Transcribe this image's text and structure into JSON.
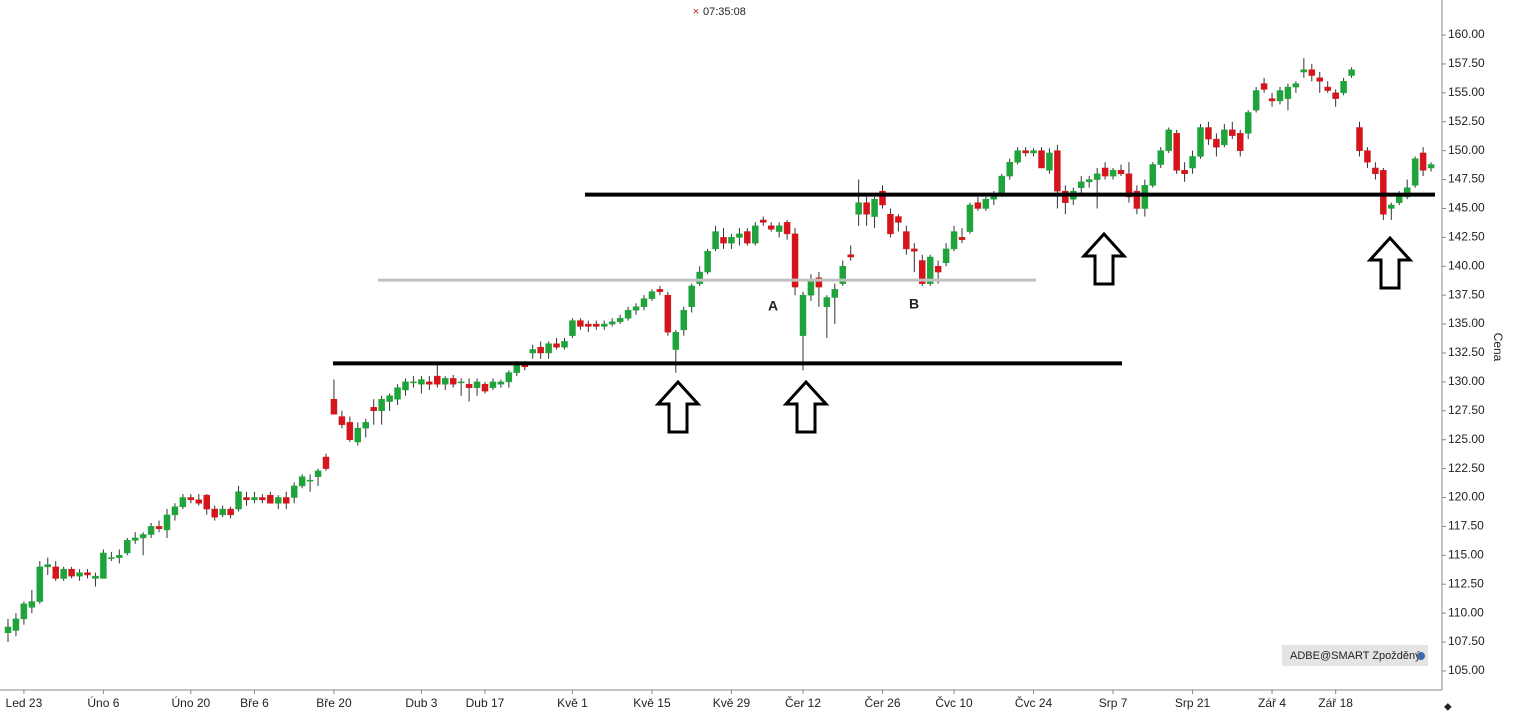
{
  "chart_data": {
    "type": "candlestick",
    "title": "07:35:08",
    "y_axis_label": "Cena",
    "badge": "ADBE@SMART Zpožděný",
    "annotations": [
      "A",
      "B"
    ],
    "up_color": "#1fa33b",
    "down_color": "#d4161c",
    "ylim": [
      103.35,
      163.03
    ],
    "yticks": [
      {
        "value": 105,
        "label": "105.00"
      },
      {
        "value": 107.5,
        "label": "107.50"
      },
      {
        "value": 110,
        "label": "110.00"
      },
      {
        "value": 112.5,
        "label": "112.50"
      },
      {
        "value": 115,
        "label": "115.00"
      },
      {
        "value": 117.5,
        "label": "117.50"
      },
      {
        "value": 120,
        "label": "120.00"
      },
      {
        "value": 122.5,
        "label": "122.50"
      },
      {
        "value": 125,
        "label": "125.00"
      },
      {
        "value": 127.5,
        "label": "127.50"
      },
      {
        "value": 130,
        "label": "130.00"
      },
      {
        "value": 132.5,
        "label": "132.50"
      },
      {
        "value": 135,
        "label": "135.00"
      },
      {
        "value": 137.5,
        "label": "137.50"
      },
      {
        "value": 140,
        "label": "140.00"
      },
      {
        "value": 142.5,
        "label": "142.50"
      },
      {
        "value": 145,
        "label": "145.00"
      },
      {
        "value": 147.5,
        "label": "147.50"
      },
      {
        "value": 150,
        "label": "150.00"
      },
      {
        "value": 152.5,
        "label": "152.50"
      },
      {
        "value": 155,
        "label": "155.00"
      },
      {
        "value": 157.5,
        "label": "157.50"
      },
      {
        "value": 160,
        "label": "160.00"
      }
    ],
    "levels": [
      {
        "value": 131.6,
        "color": "#000000"
      },
      {
        "value": 146.2,
        "color": "#000000"
      },
      {
        "value": 138.8,
        "color": "#c0c0c0"
      }
    ],
    "categories": [
      null,
      null,
      "Led 23",
      null,
      null,
      null,
      null,
      null,
      null,
      null,
      null,
      null,
      "Úno 6",
      null,
      null,
      null,
      null,
      null,
      null,
      null,
      null,
      null,
      null,
      "Úno 20",
      null,
      null,
      null,
      null,
      null,
      null,
      null,
      "Bře 6",
      null,
      null,
      null,
      null,
      null,
      null,
      null,
      null,
      null,
      "Bře 20",
      null,
      null,
      null,
      null,
      null,
      null,
      null,
      null,
      null,
      null,
      "Dub 3",
      null,
      null,
      null,
      null,
      null,
      null,
      null,
      "Dub 17",
      null,
      null,
      null,
      null,
      null,
      null,
      null,
      null,
      null,
      null,
      "Kvě 1",
      null,
      null,
      null,
      null,
      null,
      null,
      null,
      null,
      null,
      "Kvě 15",
      null,
      null,
      null,
      null,
      null,
      null,
      null,
      null,
      null,
      "Kvě 29",
      null,
      null,
      null,
      null,
      null,
      null,
      null,
      null,
      "Čer 12",
      null,
      null,
      null,
      null,
      null,
      null,
      null,
      null,
      null,
      "Čer 26",
      null,
      null,
      null,
      null,
      null,
      null,
      null,
      null,
      "Čvc 10",
      null,
      null,
      null,
      null,
      null,
      null,
      null,
      null,
      null,
      "Čvc 24",
      null,
      null,
      null,
      null,
      null,
      null,
      null,
      null,
      null,
      "Srp 7",
      null,
      null,
      null,
      null,
      null,
      null,
      null,
      null,
      null,
      "Srp 21",
      null,
      null,
      null,
      null,
      null,
      null,
      null,
      null,
      null,
      "Zář 4",
      null,
      null,
      null,
      null,
      null,
      null,
      null,
      "Zář 18",
      null,
      null,
      null,
      null,
      null,
      null,
      null,
      null,
      null,
      null,
      null,
      null
    ],
    "candles": [
      [
        108.3,
        109.5,
        107.5,
        108.8
      ],
      [
        108.5,
        110,
        108,
        109.5
      ],
      [
        109.5,
        111,
        109,
        110.8
      ],
      [
        110.5,
        112,
        110,
        111
      ],
      [
        111,
        114.5,
        110.8,
        114
      ],
      [
        114,
        114.8,
        113.3,
        114.2
      ],
      [
        114,
        114.5,
        112.8,
        113
      ],
      [
        113,
        114,
        112.8,
        113.8
      ],
      [
        113.8,
        114,
        113,
        113.2
      ],
      [
        113.2,
        113.8,
        112.8,
        113.5
      ],
      [
        113.5,
        113.8,
        113,
        113.3
      ],
      [
        113,
        113.5,
        112.3,
        113.2
      ],
      [
        113,
        115.5,
        113,
        115.2
      ],
      [
        114.8,
        115.3,
        114.5,
        114.8
      ],
      [
        114.8,
        115.5,
        114.3,
        115
      ],
      [
        115.2,
        116.5,
        115,
        116.3
      ],
      [
        116.3,
        117,
        116,
        116.5
      ],
      [
        116.5,
        117,
        115,
        116.8
      ],
      [
        116.8,
        117.8,
        116.5,
        117.5
      ],
      [
        117.5,
        118,
        117,
        117.3
      ],
      [
        117.2,
        119,
        116.5,
        118.5
      ],
      [
        118.5,
        119.5,
        118,
        119.2
      ],
      [
        119.2,
        120.3,
        119,
        120
      ],
      [
        120,
        120.3,
        119.5,
        119.8
      ],
      [
        119.8,
        120.3,
        119.3,
        119.5
      ],
      [
        120.2,
        120.3,
        118.5,
        119
      ],
      [
        119,
        119.3,
        118,
        118.3
      ],
      [
        118.5,
        119.3,
        118.3,
        119
      ],
      [
        119,
        119.2,
        118.2,
        118.5
      ],
      [
        119,
        121,
        118.8,
        120.5
      ],
      [
        120,
        120.5,
        119.3,
        119.8
      ],
      [
        119.8,
        120.5,
        119.5,
        120
      ],
      [
        120,
        120.3,
        119.5,
        119.8
      ],
      [
        120.2,
        120.5,
        119.5,
        119.5
      ],
      [
        119.5,
        120.2,
        119,
        120
      ],
      [
        120,
        120.5,
        119,
        119.5
      ],
      [
        120,
        121.3,
        119.5,
        121
      ],
      [
        121,
        122,
        120.8,
        121.8
      ],
      [
        121.5,
        122,
        120.5,
        121.5
      ],
      [
        121.8,
        122.5,
        121,
        122.3
      ],
      [
        123.5,
        123.8,
        122.3,
        122.5
      ],
      [
        128.5,
        130.2,
        127.2,
        127.2
      ],
      [
        127,
        127.5,
        126,
        126.3
      ],
      [
        126.5,
        127,
        124.8,
        125
      ],
      [
        124.8,
        126.5,
        124.5,
        126
      ],
      [
        126,
        126.8,
        125.2,
        126.5
      ],
      [
        127.8,
        128.5,
        126.3,
        127.5
      ],
      [
        127.5,
        128.8,
        126.3,
        128.5
      ],
      [
        128.3,
        129,
        127.5,
        128.8
      ],
      [
        128.5,
        129.8,
        128,
        129.5
      ],
      [
        129.3,
        130.3,
        128.8,
        130
      ],
      [
        130,
        130.5,
        129.5,
        130
      ],
      [
        129.8,
        130.5,
        129,
        130.2
      ],
      [
        130,
        130.5,
        129.3,
        129.8
      ],
      [
        130.5,
        131.5,
        129.5,
        129.8
      ],
      [
        129.8,
        130.5,
        129.3,
        130.3
      ],
      [
        130.3,
        130.6,
        129.5,
        129.8
      ],
      [
        130,
        130.3,
        128.8,
        130
      ],
      [
        129.8,
        130.3,
        128.3,
        129.5
      ],
      [
        129.5,
        130.3,
        128.8,
        130
      ],
      [
        129.8,
        130,
        129,
        129.2
      ],
      [
        129.5,
        130.3,
        129.3,
        130
      ],
      [
        129.8,
        130.2,
        129.5,
        130
      ],
      [
        130,
        131,
        129.5,
        130.8
      ],
      [
        130.8,
        131.8,
        130.5,
        131.5
      ],
      [
        131.5,
        131.8,
        131,
        131.3
      ],
      [
        132.5,
        133.2,
        132,
        132.8
      ],
      [
        133,
        133.5,
        132,
        132.5
      ],
      [
        132.5,
        133.5,
        132,
        133.3
      ],
      [
        133.3,
        133.8,
        132.8,
        133
      ],
      [
        133,
        133.8,
        132.8,
        133.5
      ],
      [
        134,
        135.5,
        133.8,
        135.3
      ],
      [
        135.3,
        135.5,
        134.5,
        134.8
      ],
      [
        135,
        135.3,
        134.3,
        134.8
      ],
      [
        135,
        135.3,
        134.5,
        134.8
      ],
      [
        134.8,
        135.3,
        134.5,
        135
      ],
      [
        135,
        135.5,
        134.8,
        135.2
      ],
      [
        135.2,
        135.8,
        135,
        135.5
      ],
      [
        135.5,
        136.5,
        135.3,
        136.2
      ],
      [
        136.2,
        136.8,
        135.8,
        136.5
      ],
      [
        136.5,
        137.5,
        136.2,
        137.2
      ],
      [
        137.2,
        138,
        137,
        137.8
      ],
      [
        138,
        138.3,
        137.5,
        137.8
      ],
      [
        137.5,
        137.8,
        134,
        134.3
      ],
      [
        132.8,
        134.5,
        130.8,
        134.3
      ],
      [
        134.5,
        136.5,
        134,
        136.2
      ],
      [
        136.5,
        138.5,
        136,
        138.3
      ],
      [
        138.5,
        140,
        138.3,
        139.5
      ],
      [
        139.5,
        141.5,
        139.3,
        141.3
      ],
      [
        141.5,
        143.5,
        141.3,
        143
      ],
      [
        142.5,
        143.3,
        141.5,
        142
      ],
      [
        142,
        142.8,
        141.5,
        142.5
      ],
      [
        142.5,
        143.3,
        141.8,
        142.8
      ],
      [
        143,
        143.3,
        141.8,
        142
      ],
      [
        142,
        143.8,
        141.8,
        143.5
      ],
      [
        144,
        144.3,
        143.5,
        143.8
      ],
      [
        143.5,
        143.8,
        143,
        143.2
      ],
      [
        143,
        143.8,
        142.5,
        143.5
      ],
      [
        143.8,
        144,
        142.3,
        142.8
      ],
      [
        142.8,
        143.3,
        137.5,
        138.2
      ],
      [
        134,
        137.8,
        131,
        137.5
      ],
      [
        137.5,
        139.3,
        137,
        138.8
      ],
      [
        139,
        139.5,
        136.5,
        138.2
      ],
      [
        136.5,
        137.5,
        133.8,
        137.3
      ],
      [
        137.3,
        138.5,
        135,
        138
      ],
      [
        138.5,
        140.5,
        138.3,
        140
      ],
      [
        141,
        141.8,
        140.5,
        140.8
      ],
      [
        144.5,
        147.5,
        143.5,
        145.5
      ],
      [
        145.5,
        146,
        143.5,
        144.5
      ],
      [
        144.3,
        146,
        143.3,
        145.8
      ],
      [
        146.5,
        147,
        145,
        145.3
      ],
      [
        144.5,
        145,
        142.5,
        142.8
      ],
      [
        144.3,
        144.5,
        143,
        143.8
      ],
      [
        143,
        143.5,
        141,
        141.5
      ],
      [
        141.5,
        142,
        139.5,
        141.3
      ],
      [
        140.5,
        141,
        138.3,
        138.5
      ],
      [
        138.5,
        141,
        138.3,
        140.8
      ],
      [
        140,
        140.5,
        138.5,
        139.5
      ],
      [
        140.3,
        142,
        140,
        141.5
      ],
      [
        141.5,
        143.5,
        141.3,
        143
      ],
      [
        142.5,
        143.3,
        142,
        142.3
      ],
      [
        143,
        145.5,
        142.8,
        145.3
      ],
      [
        145.5,
        146,
        144.8,
        145
      ],
      [
        145,
        146,
        144.8,
        145.8
      ],
      [
        145.8,
        146.5,
        145.3,
        146.3
      ],
      [
        146.3,
        148,
        146,
        147.8
      ],
      [
        147.8,
        149.3,
        147.5,
        149
      ],
      [
        149,
        150.3,
        148.8,
        150
      ],
      [
        150,
        150.3,
        149.5,
        149.8
      ],
      [
        149.8,
        150.2,
        149.5,
        150
      ],
      [
        150,
        150.3,
        148.5,
        148.5
      ],
      [
        148.3,
        150.2,
        148,
        149.8
      ],
      [
        150,
        150.5,
        145,
        146.5
      ],
      [
        146.5,
        147,
        144.5,
        145.5
      ],
      [
        145.8,
        146.8,
        145.3,
        146.5
      ],
      [
        146.8,
        147.8,
        146.3,
        147.3
      ],
      [
        147.3,
        147.8,
        146.8,
        147.5
      ],
      [
        147.5,
        148.5,
        145,
        148
      ],
      [
        148.5,
        149,
        147.5,
        147.8
      ],
      [
        147.8,
        148.5,
        147.5,
        148.3
      ],
      [
        148.3,
        148.8,
        147.8,
        148
      ],
      [
        148,
        149,
        145.5,
        146
      ],
      [
        146.5,
        147,
        144.5,
        145
      ],
      [
        145,
        147.5,
        144.3,
        147
      ],
      [
        147,
        149,
        146.8,
        148.8
      ],
      [
        148.8,
        150.3,
        148.5,
        150
      ],
      [
        150,
        152,
        149.8,
        151.8
      ],
      [
        151.5,
        151.8,
        148,
        148.3
      ],
      [
        148.3,
        149,
        147.3,
        148
      ],
      [
        148.5,
        150,
        148,
        149.5
      ],
      [
        149.5,
        152.3,
        149.3,
        152
      ],
      [
        152,
        152.5,
        150.5,
        151
      ],
      [
        151,
        151.5,
        149.5,
        150.3
      ],
      [
        150.5,
        152.3,
        150.3,
        151.8
      ],
      [
        151.8,
        152.5,
        151,
        151.3
      ],
      [
        151.5,
        151.8,
        149.5,
        150
      ],
      [
        151.5,
        153.5,
        151,
        153.3
      ],
      [
        153.5,
        155.5,
        153.3,
        155.2
      ],
      [
        155.8,
        156.3,
        155,
        155.3
      ],
      [
        154.5,
        155,
        153.8,
        154.3
      ],
      [
        154.3,
        155.5,
        154,
        155.2
      ],
      [
        154.5,
        155.8,
        153.5,
        155.5
      ],
      [
        155.5,
        156,
        155,
        155.8
      ],
      [
        156.8,
        158,
        156.3,
        157
      ],
      [
        157,
        157.5,
        156,
        156.5
      ],
      [
        156.3,
        156.8,
        155,
        156
      ],
      [
        155.5,
        156,
        155,
        155.2
      ],
      [
        155,
        155.3,
        153.8,
        154.5
      ],
      [
        155,
        156.3,
        154.8,
        156
      ],
      [
        156.5,
        157.2,
        156.3,
        157
      ],
      [
        152,
        152.5,
        149.5,
        150
      ],
      [
        150,
        150.3,
        148.5,
        149
      ],
      [
        148.5,
        149,
        147.5,
        148
      ],
      [
        148.3,
        148.5,
        144,
        144.5
      ],
      [
        145,
        145.5,
        144,
        145.3
      ],
      [
        145.5,
        146.5,
        145.3,
        146.2
      ],
      [
        146,
        147.5,
        145.8,
        146.8
      ],
      [
        147,
        149.5,
        146.8,
        149.3
      ],
      [
        149.8,
        150.3,
        147.8,
        148.3
      ],
      [
        148.5,
        149,
        148.2,
        148.8
      ]
    ]
  }
}
